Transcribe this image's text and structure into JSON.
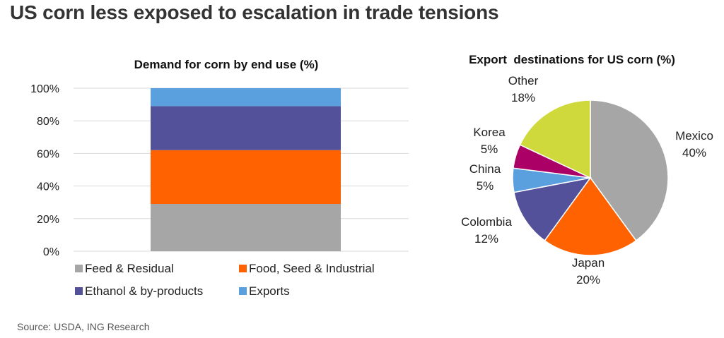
{
  "title": "US corn less exposed to escalation in trade tensions",
  "source": "Source: USDA, ING Research",
  "colors": {
    "feed": "#a6a6a6",
    "food": "#ff6200",
    "ethanol": "#525199",
    "exports": "#5aa0de",
    "mexico": "#a6a6a6",
    "japan": "#ff6200",
    "colombia": "#525199",
    "china": "#5aa0de",
    "korea": "#ab0066",
    "other": "#d0d93c",
    "grid": "#d9d9d9"
  },
  "chart_data": [
    {
      "type": "bar",
      "stacked": true,
      "title": "Demand for corn by end use (%)",
      "xlabel": "",
      "ylabel": "",
      "ylim": [
        0,
        100
      ],
      "yticks": [
        "0%",
        "20%",
        "40%",
        "60%",
        "80%",
        "100%"
      ],
      "categories": [
        ""
      ],
      "series": [
        {
          "name": "Feed & Residual",
          "values": [
            29
          ],
          "color_key": "feed"
        },
        {
          "name": "Food, Seed & Industrial",
          "values": [
            33
          ],
          "color_key": "food"
        },
        {
          "name": "Ethanol & by-products",
          "values": [
            27
          ],
          "color_key": "ethanol"
        },
        {
          "name": "Exports",
          "values": [
            11
          ],
          "color_key": "exports"
        }
      ],
      "legend": "bottom"
    },
    {
      "type": "pie",
      "title": "Export  destinations for US corn (%)",
      "slices": [
        {
          "label": "Mexico",
          "value": 40,
          "value_label": "40%",
          "color_key": "mexico"
        },
        {
          "label": "Japan",
          "value": 20,
          "value_label": "20%",
          "color_key": "japan"
        },
        {
          "label": "Colombia",
          "value": 12,
          "value_label": "12%",
          "color_key": "colombia"
        },
        {
          "label": "China",
          "value": 5,
          "value_label": "5%",
          "color_key": "china"
        },
        {
          "label": "Korea",
          "value": 5,
          "value_label": "5%",
          "color_key": "korea"
        },
        {
          "label": "Other",
          "value": 18,
          "value_label": "18%",
          "color_key": "other"
        }
      ]
    }
  ]
}
